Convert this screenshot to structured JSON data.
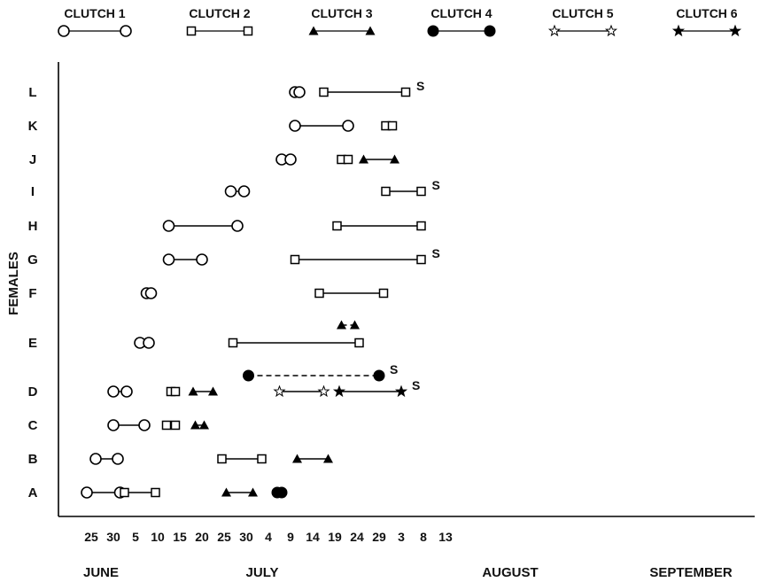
{
  "chart_data": {
    "type": "scatter",
    "title": "",
    "xlabel": "",
    "ylabel": "FEMALES",
    "xlim": [
      0,
      83
    ],
    "tick_labels": [
      "25",
      "30",
      "5",
      "10",
      "15",
      "20",
      "25",
      "30",
      "4",
      "9",
      "14",
      "19",
      "24",
      "29",
      "3",
      "8",
      "13"
    ],
    "months": [
      "JUNE",
      "JULY",
      "AUGUST",
      "SEPTEMBER"
    ],
    "females": [
      "A",
      "B",
      "C",
      "D",
      "E",
      "F",
      "G",
      "H",
      "I",
      "J",
      "K",
      "L"
    ],
    "clutches": [
      {
        "name": "CLUTCH 1",
        "marker": "open-circle"
      },
      {
        "name": "CLUTCH 2",
        "marker": "open-square"
      },
      {
        "name": "CLUTCH 3",
        "marker": "filled-triangle"
      },
      {
        "name": "CLUTCH 4",
        "marker": "filled-circle"
      },
      {
        "name": "CLUTCH 5",
        "marker": "open-star"
      },
      {
        "name": "CLUTCH 6",
        "marker": "filled-star"
      }
    ],
    "intervals": [
      {
        "female": "A",
        "clutch": 1,
        "start": 2,
        "end": 17
      },
      {
        "female": "A",
        "clutch": 2,
        "start": 19,
        "end": 33
      },
      {
        "female": "A",
        "clutch": 3,
        "start": 65,
        "end": 77
      },
      {
        "female": "A",
        "clutch": 4,
        "start": 88,
        "end": 90
      },
      {
        "female": "B",
        "clutch": 1,
        "start": 6,
        "end": 16
      },
      {
        "female": "B",
        "clutch": 2,
        "start": 63,
        "end": 81
      },
      {
        "female": "B",
        "clutch": 3,
        "start": 97,
        "end": 111
      },
      {
        "female": "C",
        "clutch": 1,
        "start": 14,
        "end": 28
      },
      {
        "female": "C",
        "clutch": 2,
        "start": 38,
        "end": 42
      },
      {
        "female": "C",
        "clutch": 3,
        "start": 51,
        "end": 55
      },
      {
        "female": "D",
        "clutch": 1,
        "start": 14,
        "end": 20
      },
      {
        "female": "D",
        "clutch": 2,
        "start": 40,
        "end": 42
      },
      {
        "female": "D",
        "clutch": 3,
        "start": 50,
        "end": 59
      },
      {
        "female": "D",
        "clutch": 4,
        "start": 75,
        "end": 134,
        "dashed": true,
        "survived": true
      },
      {
        "female": "D",
        "clutch": 5,
        "start": 89,
        "end": 109
      },
      {
        "female": "D",
        "clutch": 6,
        "start": 116,
        "end": 144,
        "survived": true
      },
      {
        "female": "E",
        "clutch": 1,
        "start": 26,
        "end": 30
      },
      {
        "female": "E",
        "clutch": 2,
        "start": 68,
        "end": 125
      },
      {
        "female": "E",
        "clutch": 3,
        "start": 117,
        "end": 123,
        "dashed": true
      },
      {
        "female": "F",
        "clutch": 1,
        "start": 29,
        "end": 31
      },
      {
        "female": "F",
        "clutch": 2,
        "start": 107,
        "end": 136
      },
      {
        "female": "G",
        "clutch": 1,
        "start": 39,
        "end": 54
      },
      {
        "female": "G",
        "clutch": 2,
        "start": 96,
        "end": 153,
        "survived": true
      },
      {
        "female": "H",
        "clutch": 1,
        "start": 39,
        "end": 70
      },
      {
        "female": "H",
        "clutch": 2,
        "start": 115,
        "end": 153
      },
      {
        "female": "I",
        "clutch": 1,
        "start": 67,
        "end": 73
      },
      {
        "female": "I",
        "clutch": 2,
        "start": 137,
        "end": 153,
        "survived": true
      },
      {
        "female": "J",
        "clutch": 1,
        "start": 90,
        "end": 94
      },
      {
        "female": "J",
        "clutch": 2,
        "start": 117,
        "end": 120
      },
      {
        "female": "J",
        "clutch": 3,
        "start": 127,
        "end": 141
      },
      {
        "female": "K",
        "clutch": 1,
        "start": 96,
        "end": 120
      },
      {
        "female": "K",
        "clutch": 2,
        "start": 137,
        "end": 140
      },
      {
        "female": "L",
        "clutch": 1,
        "start": 96,
        "end": 98
      },
      {
        "female": "L",
        "clutch": 2,
        "start": 109,
        "end": 146,
        "survived": true
      }
    ],
    "survived_label": "S"
  }
}
